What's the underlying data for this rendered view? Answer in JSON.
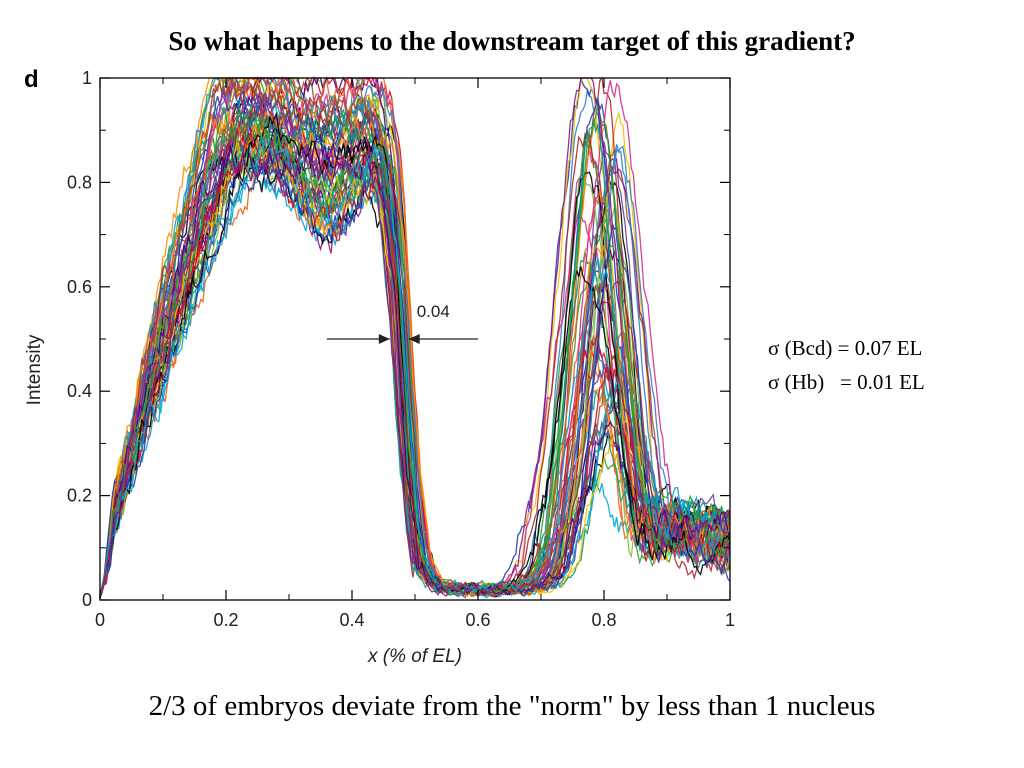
{
  "slide": {
    "title": "So what happens to the downstream target of this gradient?",
    "panel_label": "d",
    "sigma_bcd": "σ (Bcd) = 0.07 EL",
    "sigma_hb": "σ (Hb)   = 0.01 EL",
    "caption": "2/3 of embryos deviate from the \"norm\" by less than 1 nucleus"
  },
  "chart_data": {
    "type": "line",
    "xlabel": "x (% of EL)",
    "ylabel": "Intensity",
    "xlim": [
      0,
      1
    ],
    "ylim": [
      0,
      1
    ],
    "x_ticks": [
      "0",
      "0.2",
      "0.4",
      "0.6",
      "0.8",
      "1"
    ],
    "y_ticks": [
      "0",
      "0.2",
      "0.4",
      "0.6",
      "0.8",
      "1"
    ],
    "grid": false,
    "annotation": {
      "text": "0.04",
      "arrow_left_x": [
        0.36,
        0.46
      ],
      "arrow_right_x": [
        0.49,
        0.6
      ],
      "y": 0.5
    },
    "series_count": 60,
    "profile_shape": {
      "anterior_plateau": 0.9,
      "anterior_boundary_x": 0.48,
      "trough_min": 0.02,
      "posterior_peak_x": 0.8,
      "posterior_peak_range": [
        0.18,
        1.0
      ]
    },
    "colors": [
      "#000000",
      "#c8102e",
      "#1e3fae",
      "#2ca02c",
      "#00a6d6",
      "#8b1a89",
      "#f2c200",
      "#e8641e",
      "#1f9e89",
      "#d62d8b",
      "#6b3fa0",
      "#7fbf3f",
      "#3a7dc8",
      "#b02a2a",
      "#ff8c00",
      "#009e73",
      "#a0522d",
      "#4b0082"
    ]
  }
}
